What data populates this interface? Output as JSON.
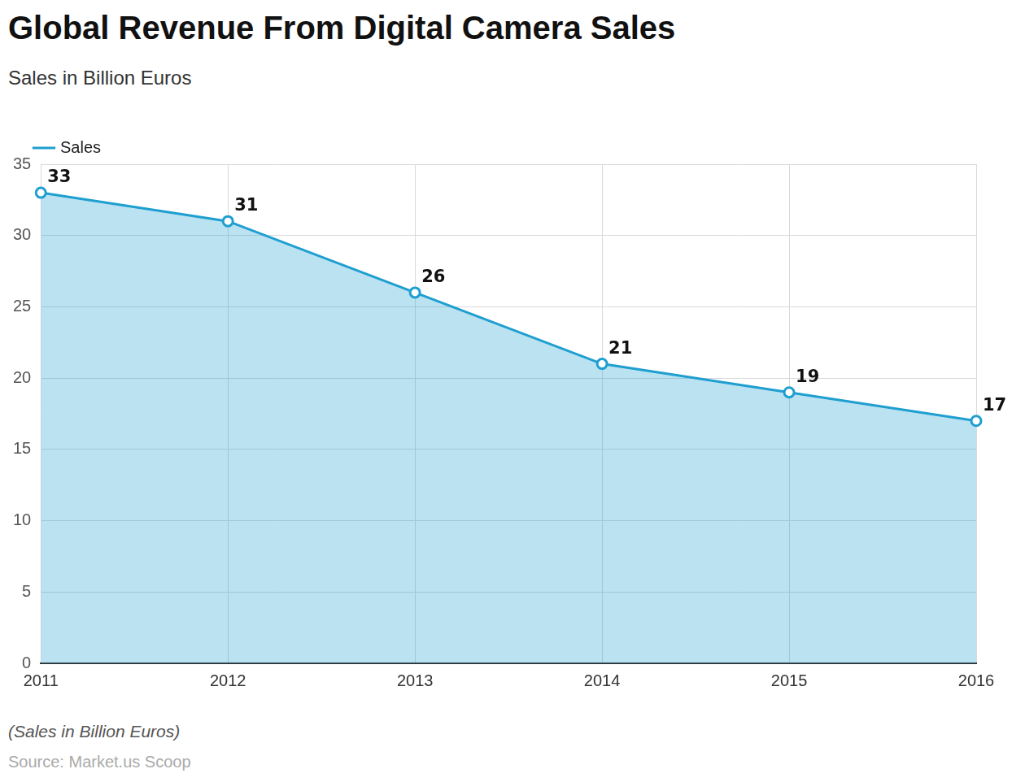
{
  "chart_data": {
    "type": "area",
    "title": "Global Revenue From Digital Camera Sales",
    "subtitle": "Sales in Billion Euros",
    "categories": [
      "2011",
      "2012",
      "2013",
      "2014",
      "2015",
      "2016"
    ],
    "series": [
      {
        "name": "Sales",
        "color": "#1f9fd0",
        "values": [
          33,
          31,
          26,
          21,
          19,
          17
        ],
        "marker": "circle"
      }
    ],
    "ylim": [
      0,
      35
    ],
    "yticks": [
      0,
      5,
      10,
      15,
      20,
      25,
      30,
      35
    ],
    "grid": true,
    "legend": "top-left",
    "data_labels": true,
    "annotations": [
      "(Sales in Billion Euros)",
      "Source: Market.us Scoop"
    ]
  }
}
